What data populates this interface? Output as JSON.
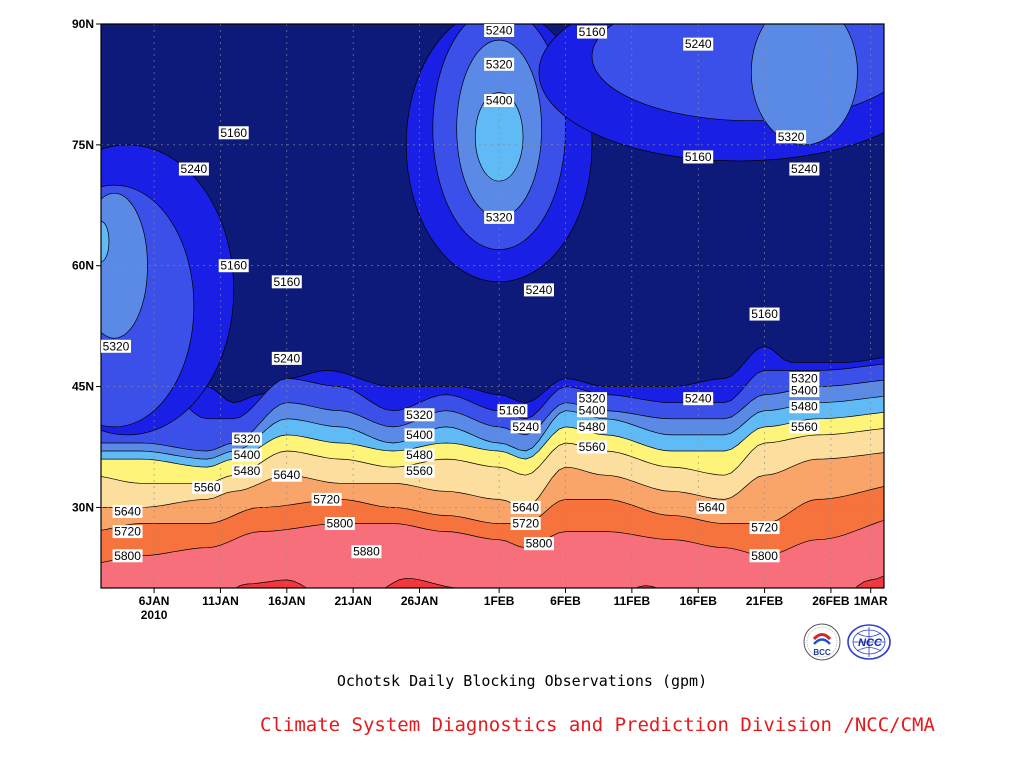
{
  "chart_data": {
    "type": "contour",
    "title": "Ochotsk Daily Blocking Observations (gpm)",
    "xlabel": "",
    "ylabel": "",
    "x_range": [
      "2010-01-02",
      "2010-03-02"
    ],
    "y_range": [
      20,
      90
    ],
    "x_ticks": [
      {
        "date": "2010-01-06",
        "label": "6JAN",
        "sublabel": "2010"
      },
      {
        "date": "2010-01-11",
        "label": "11JAN"
      },
      {
        "date": "2010-01-16",
        "label": "16JAN"
      },
      {
        "date": "2010-01-21",
        "label": "21JAN"
      },
      {
        "date": "2010-01-26",
        "label": "26JAN"
      },
      {
        "date": "2010-02-01",
        "label": "1FEB"
      },
      {
        "date": "2010-02-06",
        "label": "6FEB"
      },
      {
        "date": "2010-02-11",
        "label": "11FEB"
      },
      {
        "date": "2010-02-16",
        "label": "16FEB"
      },
      {
        "date": "2010-02-21",
        "label": "21FEB"
      },
      {
        "date": "2010-02-26",
        "label": "26FEB"
      },
      {
        "date": "2010-03-01",
        "label": "1MAR"
      }
    ],
    "y_ticks": [
      {
        "value": 30,
        "label": "30N"
      },
      {
        "value": 45,
        "label": "45N"
      },
      {
        "value": 60,
        "label": "60N"
      },
      {
        "value": 75,
        "label": "75N"
      },
      {
        "value": 90,
        "label": "90N"
      }
    ],
    "grid": true,
    "contour_levels": [
      5160,
      5240,
      5320,
      5400,
      5480,
      5560,
      5640,
      5720,
      5800,
      5880
    ],
    "fill_colors": [
      "#0e1a7a",
      "#1a1fe6",
      "#3b50e8",
      "#5a8ae6",
      "#5fbaf5",
      "#fff47a",
      "#fcdf9e",
      "#f9a56a",
      "#f7733e",
      "#f76f7a",
      "#f2363e"
    ],
    "contour_labels": [
      {
        "text": "5240",
        "date": "2010-02-01",
        "lat": 89.5
      },
      {
        "text": "5160",
        "date": "2010-02-08",
        "lat": 89
      },
      {
        "text": "5240",
        "date": "2010-02-16",
        "lat": 87.5
      },
      {
        "text": "5320",
        "date": "2010-02-01",
        "lat": 85
      },
      {
        "text": "5400",
        "date": "2010-02-01",
        "lat": 80.5
      },
      {
        "text": "5160",
        "date": "2010-01-12",
        "lat": 76.5
      },
      {
        "text": "5320",
        "date": "2010-02-23",
        "lat": 76
      },
      {
        "text": "5160",
        "date": "2010-02-16",
        "lat": 73.5
      },
      {
        "text": "5240",
        "date": "2010-01-09",
        "lat": 72
      },
      {
        "text": "5240",
        "date": "2010-02-24",
        "lat": 72
      },
      {
        "text": "5320",
        "date": "2010-02-01",
        "lat": 66
      },
      {
        "text": "5160",
        "date": "2010-01-12",
        "lat": 60
      },
      {
        "text": "5160",
        "date": "2010-01-16",
        "lat": 58
      },
      {
        "text": "5240",
        "date": "2010-02-04",
        "lat": 57
      },
      {
        "text": "5160",
        "date": "2010-02-21",
        "lat": 54
      },
      {
        "text": "5320",
        "date": "2010-01-03",
        "lat": 50
      },
      {
        "text": "5240",
        "date": "2010-01-16",
        "lat": 48.5
      },
      {
        "text": "5320",
        "date": "2010-02-24",
        "lat": 46
      },
      {
        "text": "5400",
        "date": "2010-02-24",
        "lat": 44.5
      },
      {
        "text": "5240",
        "date": "2010-02-16",
        "lat": 43.5
      },
      {
        "text": "5320",
        "date": "2010-02-08",
        "lat": 43.5
      },
      {
        "text": "5480",
        "date": "2010-02-24",
        "lat": 42.5
      },
      {
        "text": "5160",
        "date": "2010-02-02",
        "lat": 42
      },
      {
        "text": "5400",
        "date": "2010-02-08",
        "lat": 42
      },
      {
        "text": "5320",
        "date": "2010-01-26",
        "lat": 41.5
      },
      {
        "text": "5480",
        "date": "2010-02-08",
        "lat": 40
      },
      {
        "text": "5240",
        "date": "2010-02-03",
        "lat": 40
      },
      {
        "text": "5560",
        "date": "2010-02-24",
        "lat": 40
      },
      {
        "text": "5400",
        "date": "2010-01-26",
        "lat": 39
      },
      {
        "text": "5320",
        "date": "2010-01-13",
        "lat": 38.5
      },
      {
        "text": "5560",
        "date": "2010-02-08",
        "lat": 37.5
      },
      {
        "text": "5480",
        "date": "2010-01-26",
        "lat": 36.5
      },
      {
        "text": "5400",
        "date": "2010-01-13",
        "lat": 36.5
      },
      {
        "text": "5560",
        "date": "2010-01-26",
        "lat": 34.5
      },
      {
        "text": "5480",
        "date": "2010-01-13",
        "lat": 34.5
      },
      {
        "text": "5640",
        "date": "2010-01-16",
        "lat": 34
      },
      {
        "text": "5560",
        "date": "2010-01-10",
        "lat": 32.5
      },
      {
        "text": "5720",
        "date": "2010-01-19",
        "lat": 31
      },
      {
        "text": "5640",
        "date": "2010-02-03",
        "lat": 30
      },
      {
        "text": "5640",
        "date": "2010-02-17",
        "lat": 30
      },
      {
        "text": "5640",
        "date": "2010-01-04",
        "lat": 29.5
      },
      {
        "text": "5720",
        "date": "2010-02-03",
        "lat": 28
      },
      {
        "text": "5800",
        "date": "2010-01-20",
        "lat": 28
      },
      {
        "text": "5720",
        "date": "2010-02-21",
        "lat": 27.5
      },
      {
        "text": "5720",
        "date": "2010-01-04",
        "lat": 27
      },
      {
        "text": "5800",
        "date": "2010-02-04",
        "lat": 25.5
      },
      {
        "text": "5800",
        "date": "2010-01-04",
        "lat": 24
      },
      {
        "text": "5880",
        "date": "2010-01-22",
        "lat": 24.5
      },
      {
        "text": "5800",
        "date": "2010-02-21",
        "lat": 24
      }
    ]
  },
  "caption": "Ochotsk Daily Blocking Observations (gpm)",
  "credit": "Climate System Diagnostics and Prediction Division /NCC/CMA",
  "logos": [
    "bcc-logo-icon",
    "ncc-logo-icon"
  ],
  "bcc_logo_text": "BCC",
  "ncc_logo_text": "NCC"
}
